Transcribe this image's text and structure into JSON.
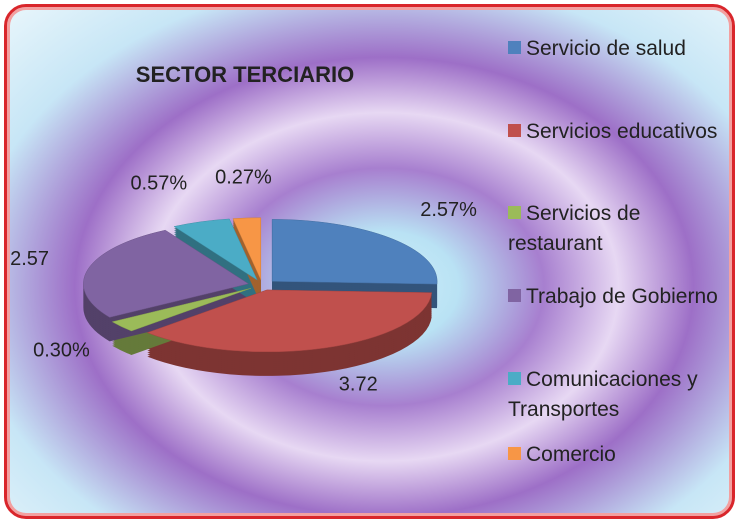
{
  "chart_data": {
    "type": "pie",
    "title": "SECTOR TERCIARIO",
    "categories": [
      "Servicio de salud",
      "Servicios educativos",
      "Servicios de restaurant",
      "Trabajo de Gobierno",
      "Comunicaciones y Transportes",
      "Comercio"
    ],
    "values": [
      2.57,
      3.72,
      0.3,
      2.57,
      0.57,
      0.27
    ],
    "value_labels": [
      "2.57%",
      "3.72",
      "0.30%",
      "2.57",
      "0.57%",
      "0.27%"
    ],
    "colors": [
      "#4f81bd",
      "#c0504d",
      "#9bbb59",
      "#8064a2",
      "#4bacc6",
      "#f79646"
    ],
    "legend": "right"
  }
}
